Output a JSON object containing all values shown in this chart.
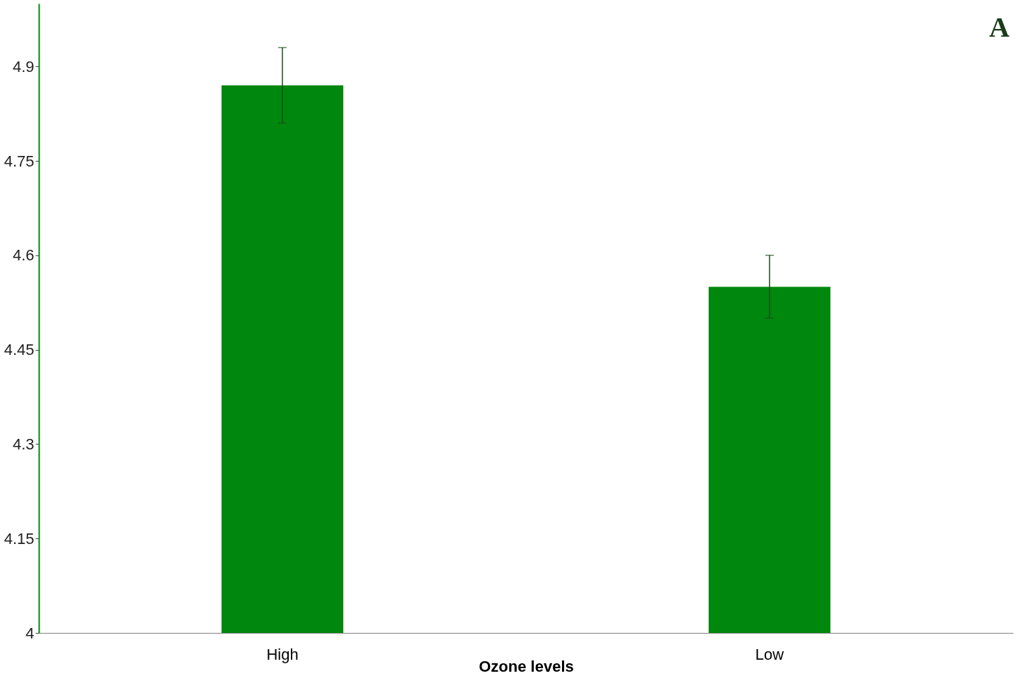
{
  "chart_data": {
    "type": "bar",
    "categories": [
      "High",
      "Low"
    ],
    "values": [
      4.87,
      4.55
    ],
    "errors": [
      0.06,
      0.05
    ],
    "color": "#00870d",
    "xlabel": "Ozone levels",
    "ylim": [
      4,
      5
    ],
    "yticks": [
      4,
      4.15,
      4.3,
      4.45,
      4.6,
      4.75,
      4.9
    ],
    "annotations": [
      "A"
    ],
    "grid": false
  }
}
